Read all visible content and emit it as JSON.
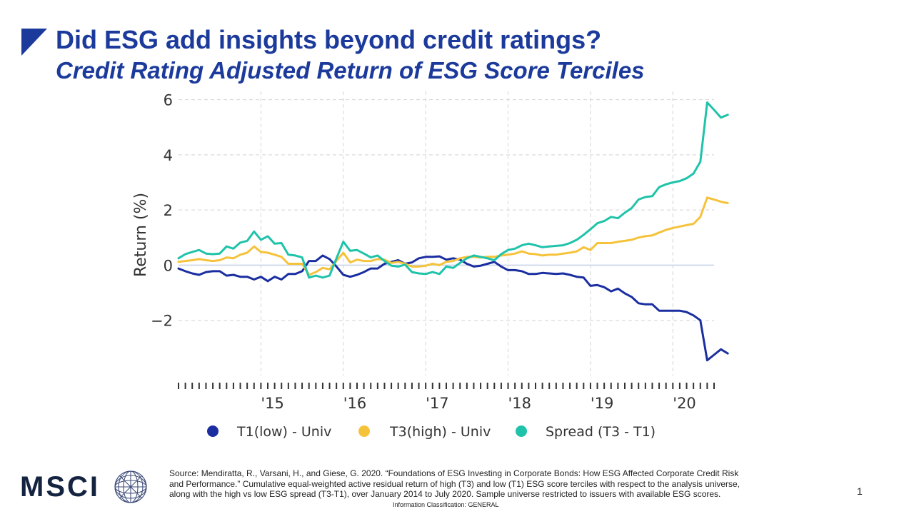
{
  "slide": {
    "title": "Did ESG add insights beyond credit ratings?",
    "subtitle": "Credit Rating Adjusted Return of ESG Score Terciles",
    "source": "Source: Mendiratta, R., Varsani, H., and Giese, G. 2020. “Foundations of ESG Investing in Corporate Bonds: How ESG Affected Corporate Credit Risk and Performance.” Cumulative equal-weighted active residual return of high (T3) and low (T1) ESG score terciles with respect to the analysis universe, along with the high vs low ESG spread (T3-T1), over January 2014 to July 2020. Sample universe restricted to issuers with available ESG scores.",
    "classification": "Information Classification: GENERAL",
    "page_number": "1",
    "logo_text": "MSCI",
    "brand_color": "#1b3a9b"
  },
  "chart_data": {
    "type": "line",
    "title": "",
    "xlabel": "",
    "ylabel": "Return (%)",
    "ylim": [
      -4,
      6.3
    ],
    "yticks": [
      -2,
      0,
      2,
      4,
      6
    ],
    "ytick_labels": [
      "−2",
      "0",
      "2",
      "4",
      "6"
    ],
    "x_start": "2014-01",
    "x_end": "2020-07",
    "xticks": [
      {
        "date": "2015-01",
        "label": "'15"
      },
      {
        "date": "2016-01",
        "label": "'16"
      },
      {
        "date": "2017-01",
        "label": "'17"
      },
      {
        "date": "2018-01",
        "label": "'18"
      },
      {
        "date": "2019-01",
        "label": "'19"
      },
      {
        "date": "2020-01",
        "label": "'20"
      }
    ],
    "grid": true,
    "legend_position": "bottom",
    "series": [
      {
        "name": "T1(low) - Univ",
        "color": "#1a2ea0",
        "values": [
          -0.12,
          -0.22,
          -0.3,
          -0.35,
          -0.25,
          -0.22,
          -0.22,
          -0.38,
          -0.35,
          -0.42,
          -0.42,
          -0.52,
          -0.42,
          -0.58,
          -0.42,
          -0.52,
          -0.32,
          -0.32,
          -0.22,
          0.15,
          0.15,
          0.35,
          0.22,
          -0.05,
          -0.35,
          -0.42,
          -0.35,
          -0.25,
          -0.12,
          -0.12,
          0.05,
          0.12,
          0.18,
          0.05,
          0.1,
          0.25,
          0.3,
          0.3,
          0.32,
          0.2,
          0.25,
          0.2,
          0.05,
          -0.05,
          -0.02,
          0.05,
          0.12,
          -0.05,
          -0.18,
          -0.18,
          -0.22,
          -0.32,
          -0.32,
          -0.28,
          -0.3,
          -0.32,
          -0.3,
          -0.35,
          -0.42,
          -0.45,
          -0.75,
          -0.72,
          -0.8,
          -0.95,
          -0.85,
          -1.02,
          -1.15,
          -1.38,
          -1.42,
          -1.42,
          -1.65,
          -1.65,
          -1.65,
          -1.65,
          -1.7,
          -1.82,
          -2.0,
          -3.45,
          -3.25,
          -3.05,
          -3.2
        ]
      },
      {
        "name": "T3(high) - Univ",
        "color": "#f5c33b",
        "values": [
          0.12,
          0.15,
          0.18,
          0.22,
          0.18,
          0.15,
          0.18,
          0.28,
          0.25,
          0.38,
          0.45,
          0.68,
          0.48,
          0.45,
          0.38,
          0.3,
          0.05,
          0.05,
          0.05,
          -0.35,
          -0.25,
          -0.1,
          -0.15,
          0.15,
          0.45,
          0.1,
          0.2,
          0.15,
          0.15,
          0.22,
          0.2,
          0.08,
          0.12,
          0.05,
          -0.05,
          -0.05,
          -0.02,
          0.05,
          0.0,
          0.12,
          0.15,
          0.25,
          0.3,
          0.3,
          0.28,
          0.3,
          0.3,
          0.35,
          0.38,
          0.42,
          0.5,
          0.42,
          0.4,
          0.35,
          0.38,
          0.38,
          0.42,
          0.45,
          0.5,
          0.65,
          0.55,
          0.8,
          0.8,
          0.8,
          0.85,
          0.88,
          0.92,
          1.0,
          1.05,
          1.08,
          1.18,
          1.28,
          1.35,
          1.4,
          1.45,
          1.5,
          1.75,
          2.45,
          2.38,
          2.3,
          2.25
        ]
      },
      {
        "name": "Spread (T3 - T1)",
        "color": "#1fc3aa",
        "values": [
          0.25,
          0.4,
          0.48,
          0.55,
          0.42,
          0.4,
          0.42,
          0.68,
          0.6,
          0.82,
          0.88,
          1.22,
          0.92,
          1.05,
          0.78,
          0.8,
          0.38,
          0.35,
          0.28,
          -0.45,
          -0.38,
          -0.45,
          -0.38,
          0.25,
          0.85,
          0.52,
          0.55,
          0.42,
          0.28,
          0.35,
          0.15,
          -0.02,
          -0.05,
          0.02,
          -0.25,
          -0.3,
          -0.32,
          -0.25,
          -0.32,
          -0.05,
          -0.1,
          0.08,
          0.25,
          0.35,
          0.3,
          0.25,
          0.18,
          0.4,
          0.55,
          0.6,
          0.72,
          0.78,
          0.72,
          0.65,
          0.68,
          0.7,
          0.72,
          0.8,
          0.92,
          1.1,
          1.3,
          1.52,
          1.6,
          1.75,
          1.7,
          1.9,
          2.07,
          2.38,
          2.47,
          2.5,
          2.83,
          2.93,
          3.0,
          3.05,
          3.15,
          3.32,
          3.75,
          5.9,
          5.63,
          5.35,
          5.45
        ]
      }
    ]
  }
}
